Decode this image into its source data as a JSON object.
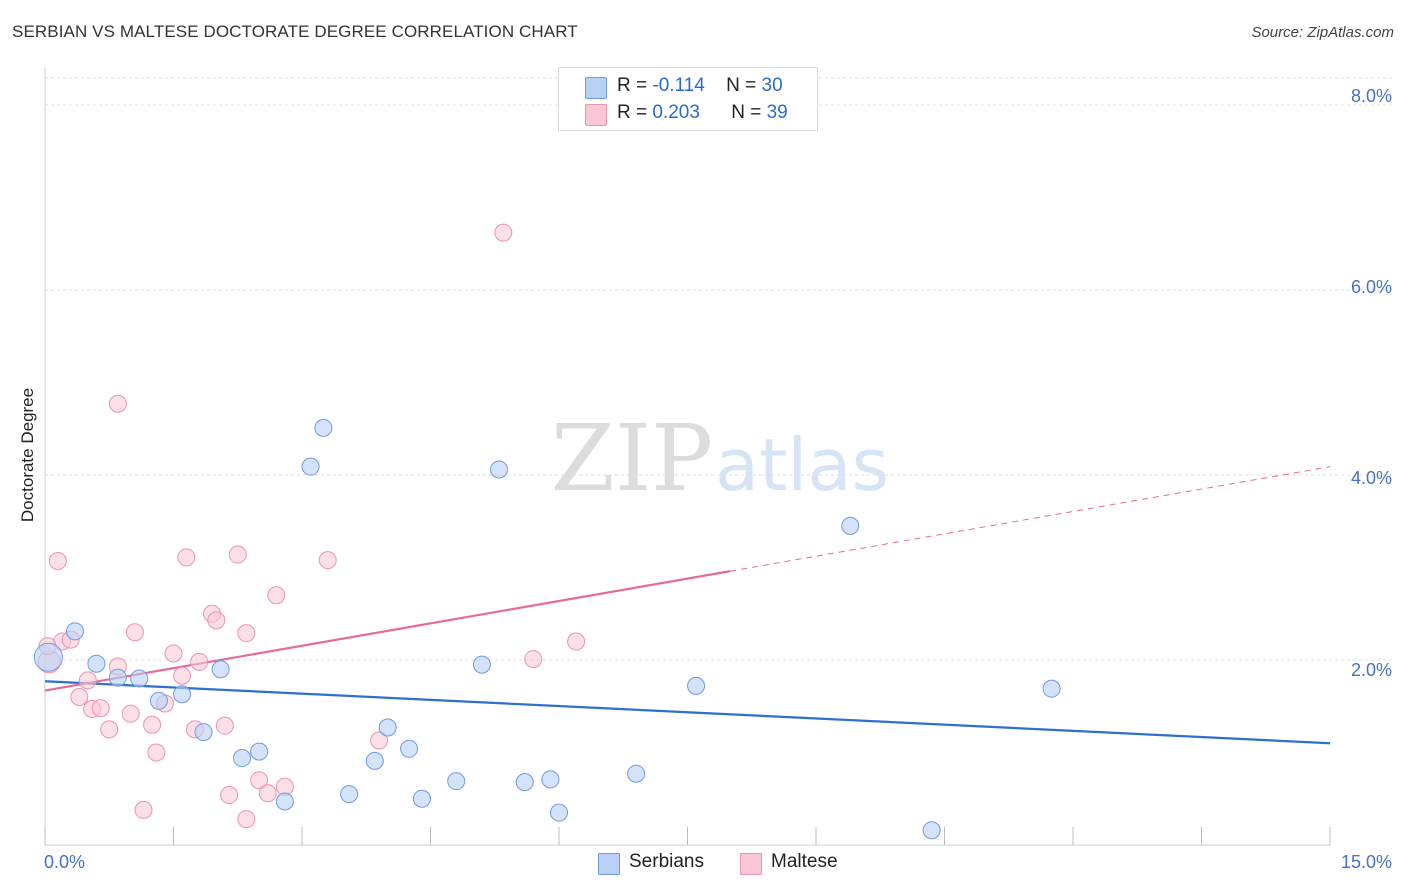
{
  "header": {
    "title": "SERBIAN VS MALTESE DOCTORATE DEGREE CORRELATION CHART",
    "source": "Source: ZipAtlas.com"
  },
  "watermark": {
    "zip": "ZIP",
    "atlas": "atlas"
  },
  "colors": {
    "serbians_fill": "#b8d0f5",
    "serbians_stroke": "#6f9be0",
    "serbians_line": "#2f6fce",
    "maltese_fill": "#f9c6d5",
    "maltese_stroke": "#ec93b0",
    "maltese_line": "#e46b95",
    "tick_label": "#4472C4"
  },
  "legend_top": {
    "serbians": {
      "r_label": "R =",
      "r_value": "-0.114",
      "n_label": "N =",
      "n_value": "30"
    },
    "maltese": {
      "r_label": "R =",
      "r_value": "0.203",
      "n_label": "N =",
      "n_value": "39"
    }
  },
  "legend_bottom": {
    "serbians": "Serbians",
    "maltese": "Maltese"
  },
  "chart_data": {
    "type": "scatter",
    "title": "SERBIAN VS MALTESE DOCTORATE DEGREE CORRELATION CHART",
    "xlabel": "",
    "ylabel": "Doctorate Degree",
    "xlim": [
      0,
      15
    ],
    "ylim": [
      0,
      8.4
    ],
    "x_tick_labels": [
      "0.0%",
      "15.0%"
    ],
    "y_ticks": [
      2,
      4,
      6,
      8
    ],
    "y_tick_labels": [
      "2.0%",
      "4.0%",
      "6.0%",
      "8.0%"
    ],
    "grid": true,
    "series": [
      {
        "name": "Serbians",
        "r": -0.114,
        "n": 30,
        "points": [
          [
            0.04,
            2.03
          ],
          [
            0.35,
            2.31
          ],
          [
            0.6,
            1.96
          ],
          [
            0.85,
            1.81
          ],
          [
            1.1,
            1.8
          ],
          [
            1.33,
            1.56
          ],
          [
            1.6,
            1.63
          ],
          [
            1.85,
            1.22
          ],
          [
            2.05,
            1.9
          ],
          [
            2.3,
            0.94
          ],
          [
            2.5,
            1.01
          ],
          [
            2.8,
            0.47
          ],
          [
            3.1,
            4.09
          ],
          [
            3.25,
            4.51
          ],
          [
            3.55,
            0.55
          ],
          [
            3.85,
            0.91
          ],
          [
            4.0,
            1.27
          ],
          [
            4.25,
            1.04
          ],
          [
            4.4,
            0.5
          ],
          [
            4.8,
            0.69
          ],
          [
            5.1,
            1.95
          ],
          [
            5.3,
            4.06
          ],
          [
            5.6,
            0.68
          ],
          [
            5.9,
            0.71
          ],
          [
            6.0,
            0.35
          ],
          [
            6.9,
            0.77
          ],
          [
            7.6,
            1.72
          ],
          [
            9.4,
            3.45
          ],
          [
            10.35,
            0.16
          ],
          [
            11.75,
            1.69
          ]
        ],
        "trend": {
          "x_start": 0,
          "y_start": 1.77,
          "x_end": 15,
          "y_end": 1.1
        }
      },
      {
        "name": "Maltese",
        "r": 0.203,
        "n": 39,
        "points": [
          [
            0.05,
            1.98
          ],
          [
            0.15,
            3.07
          ],
          [
            0.2,
            2.2
          ],
          [
            0.3,
            2.22
          ],
          [
            0.4,
            1.6
          ],
          [
            0.5,
            1.78
          ],
          [
            0.55,
            1.47
          ],
          [
            0.65,
            1.48
          ],
          [
            0.75,
            1.25
          ],
          [
            0.85,
            4.77
          ],
          [
            0.85,
            1.93
          ],
          [
            1.0,
            1.42
          ],
          [
            1.05,
            2.3
          ],
          [
            1.15,
            0.38
          ],
          [
            1.25,
            1.3
          ],
          [
            1.3,
            1.0
          ],
          [
            1.4,
            1.53
          ],
          [
            1.5,
            2.07
          ],
          [
            1.6,
            1.83
          ],
          [
            1.65,
            3.11
          ],
          [
            1.75,
            1.25
          ],
          [
            1.8,
            1.98
          ],
          [
            1.95,
            2.5
          ],
          [
            2.0,
            2.43
          ],
          [
            2.1,
            1.29
          ],
          [
            2.15,
            0.54
          ],
          [
            2.25,
            3.14
          ],
          [
            2.35,
            2.29
          ],
          [
            2.35,
            0.28
          ],
          [
            2.5,
            0.7
          ],
          [
            2.6,
            0.56
          ],
          [
            2.7,
            2.7
          ],
          [
            2.8,
            0.63
          ],
          [
            3.3,
            3.08
          ],
          [
            3.9,
            1.13
          ],
          [
            5.35,
            6.62
          ],
          [
            5.7,
            2.01
          ],
          [
            6.2,
            2.2
          ],
          [
            0.03,
            2.15
          ]
        ],
        "trend": {
          "x_start": 0,
          "y_start": 1.67,
          "x_solid_end": 8.0,
          "x_end": 15,
          "y_end": 4.09,
          "dashed_after_solid_end": true
        }
      }
    ]
  }
}
